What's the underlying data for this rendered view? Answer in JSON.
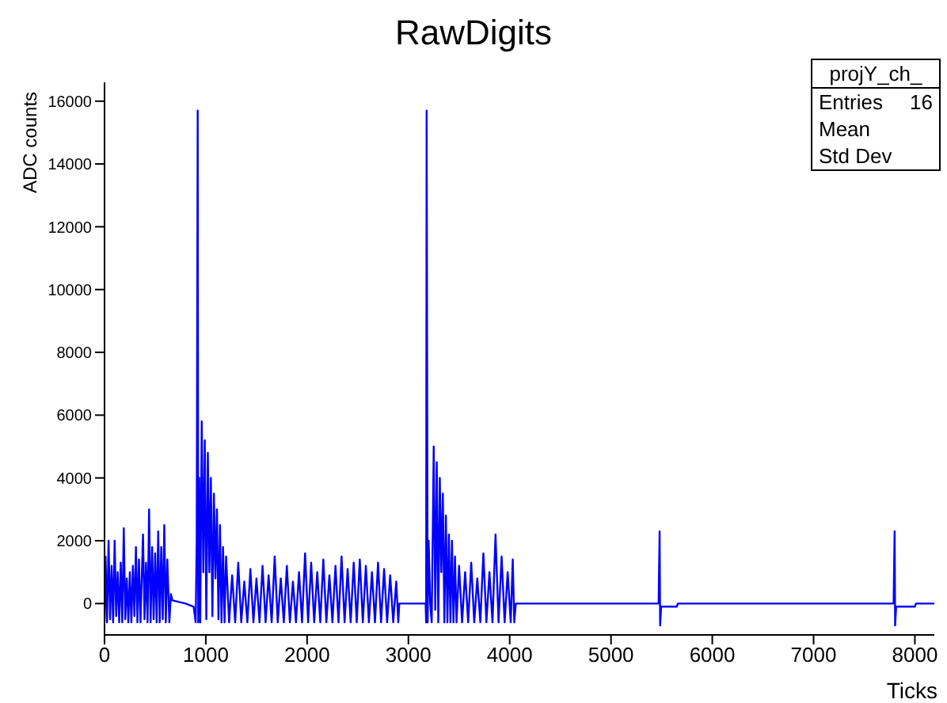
{
  "chart_data": {
    "type": "line",
    "title": "RawDigits",
    "xlabel": "Ticks",
    "ylabel": "ADC counts",
    "color": "#0000ff",
    "x": [
      0,
      10,
      25,
      40,
      55,
      70,
      85,
      100,
      115,
      130,
      145,
      160,
      175,
      190,
      205,
      220,
      235,
      250,
      265,
      280,
      295,
      310,
      325,
      340,
      355,
      380,
      395,
      410,
      425,
      440,
      455,
      470,
      485,
      500,
      515,
      530,
      545,
      560,
      575,
      590,
      605,
      620,
      640,
      655,
      670,
      800,
      880,
      900,
      910,
      920,
      925,
      935,
      945,
      960,
      975,
      990,
      1005,
      1020,
      1035,
      1050,
      1065,
      1080,
      1095,
      1110,
      1125,
      1140,
      1155,
      1170,
      1185,
      1200,
      1230,
      1260,
      1290,
      1320,
      1350,
      1380,
      1410,
      1440,
      1470,
      1500,
      1530,
      1560,
      1590,
      1620,
      1650,
      1680,
      1710,
      1740,
      1770,
      1800,
      1830,
      1860,
      1890,
      1920,
      1950,
      1980,
      2010,
      2040,
      2070,
      2100,
      2130,
      2160,
      2190,
      2220,
      2250,
      2280,
      2310,
      2340,
      2370,
      2400,
      2430,
      2460,
      2490,
      2520,
      2550,
      2580,
      2610,
      2640,
      2670,
      2700,
      2730,
      2760,
      2790,
      2820,
      2850,
      2880,
      2900,
      2910,
      3170,
      3175,
      3180,
      3190,
      3200,
      3215,
      3230,
      3250,
      3265,
      3280,
      3295,
      3310,
      3325,
      3340,
      3355,
      3370,
      3385,
      3400,
      3415,
      3430,
      3445,
      3460,
      3475,
      3500,
      3530,
      3560,
      3590,
      3620,
      3650,
      3680,
      3710,
      3740,
      3770,
      3800,
      3830,
      3860,
      3890,
      3920,
      3950,
      3980,
      4010,
      4030,
      4045,
      4060,
      5470,
      5480,
      5485,
      5495,
      5650,
      5660,
      7790,
      7800,
      7805,
      7815,
      8000,
      8010,
      8192
    ],
    "values": [
      -600,
      1500,
      -600,
      2000,
      -500,
      1200,
      -600,
      2000,
      -400,
      1000,
      -600,
      1300,
      -600,
      2400,
      -500,
      800,
      -600,
      1000,
      -600,
      1200,
      -400,
      1800,
      -600,
      1400,
      -600,
      2200,
      -500,
      1300,
      -600,
      3000,
      -600,
      1800,
      -500,
      1600,
      -600,
      2300,
      -600,
      1800,
      -500,
      2500,
      -600,
      1400,
      -600,
      300,
      100,
      0,
      -100,
      -600,
      2000,
      15700,
      -600,
      4000,
      -600,
      5800,
      1000,
      5200,
      -500,
      4800,
      1000,
      4000,
      -400,
      3500,
      800,
      3000,
      -500,
      2500,
      -600,
      1800,
      -600,
      1500,
      -600,
      900,
      -600,
      1300,
      -600,
      700,
      -600,
      1100,
      -600,
      800,
      -600,
      1200,
      -600,
      900,
      -600,
      1500,
      -600,
      800,
      -600,
      1200,
      -600,
      700,
      -600,
      1000,
      -600,
      1600,
      -600,
      1300,
      -600,
      1000,
      -600,
      1400,
      -600,
      900,
      -600,
      1200,
      -600,
      1500,
      -600,
      1100,
      -600,
      1300,
      -600,
      1400,
      -600,
      1200,
      -600,
      1000,
      -600,
      1300,
      -600,
      1100,
      -600,
      900,
      -600,
      700,
      -600,
      0,
      0,
      -600,
      15700,
      -600,
      2000,
      0,
      -600,
      5000,
      -200,
      4500,
      -600,
      4000,
      1000,
      3500,
      -600,
      2800,
      -600,
      2200,
      -600,
      2000,
      -600,
      1500,
      -600,
      1200,
      -600,
      1000,
      -600,
      1300,
      -600,
      800,
      -600,
      1600,
      -600,
      1000,
      -600,
      2200,
      -600,
      1500,
      -600,
      1000,
      -600,
      1400,
      -600,
      0,
      0,
      2300,
      -700,
      -100,
      -100,
      0,
      0,
      2300,
      -700,
      -100,
      -100,
      0,
      0
    ],
    "xlim": [
      0,
      8192
    ],
    "ylim": [
      -1000,
      16600
    ],
    "xticks": [
      0,
      1000,
      2000,
      3000,
      4000,
      5000,
      6000,
      7000,
      8000
    ],
    "yticks": [
      0,
      2000,
      4000,
      6000,
      8000,
      10000,
      12000,
      14000,
      16000
    ],
    "annotations": [
      "projY_ch_",
      "Entries",
      "16",
      "Mean",
      "Std Dev"
    ]
  }
}
